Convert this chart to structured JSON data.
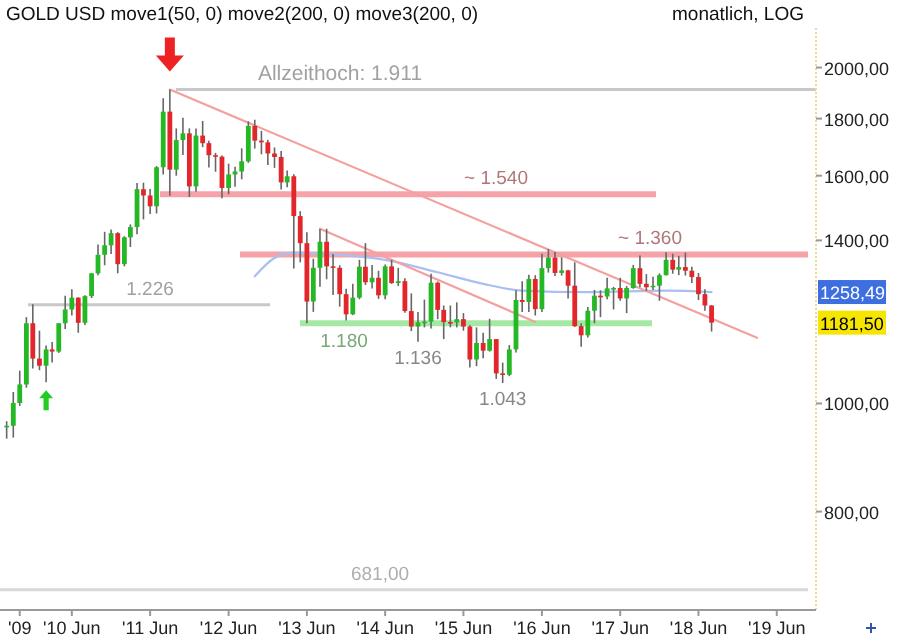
{
  "chart_data": {
    "type": "candlestick",
    "title": "GOLD USD move1(50, 0) move2(200, 0) move3(200, 0)",
    "subtitle": "monatlich, LOG",
    "x": [
      "2009-08",
      "2009-09",
      "2009-10",
      "2009-11",
      "2009-12",
      "2010-01",
      "2010-02",
      "2010-03",
      "2010-04",
      "2010-05",
      "2010-06",
      "2010-07",
      "2010-08",
      "2010-09",
      "2010-10",
      "2010-11",
      "2010-12",
      "2011-01",
      "2011-02",
      "2011-03",
      "2011-04",
      "2011-05",
      "2011-06",
      "2011-07",
      "2011-08",
      "2011-09",
      "2011-10",
      "2011-11",
      "2011-12",
      "2012-01",
      "2012-02",
      "2012-03",
      "2012-04",
      "2012-05",
      "2012-06",
      "2012-07",
      "2012-08",
      "2012-09",
      "2012-10",
      "2012-11",
      "2012-12",
      "2013-01",
      "2013-02",
      "2013-03",
      "2013-04",
      "2013-05",
      "2013-06",
      "2013-07",
      "2013-08",
      "2013-09",
      "2013-10",
      "2013-11",
      "2013-12",
      "2014-01",
      "2014-02",
      "2014-03",
      "2014-04",
      "2014-05",
      "2014-06",
      "2014-07",
      "2014-08",
      "2014-09",
      "2014-10",
      "2014-11",
      "2014-12",
      "2015-01",
      "2015-02",
      "2015-03",
      "2015-04",
      "2015-05",
      "2015-06",
      "2015-07",
      "2015-08",
      "2015-09",
      "2015-10",
      "2015-11",
      "2015-12",
      "2016-01",
      "2016-02",
      "2016-03",
      "2016-04",
      "2016-05",
      "2016-06",
      "2016-07",
      "2016-08",
      "2016-09",
      "2016-10",
      "2016-11",
      "2016-12",
      "2017-01",
      "2017-02",
      "2017-03",
      "2017-04",
      "2017-05",
      "2017-06",
      "2017-07",
      "2017-08",
      "2017-09",
      "2017-10",
      "2017-11",
      "2017-12",
      "2018-01",
      "2018-02",
      "2018-03",
      "2018-04",
      "2018-05",
      "2018-06",
      "2018-07",
      "2018-08"
    ],
    "ohlc": [
      [
        953,
        964,
        930,
        955
      ],
      [
        955,
        1024,
        932,
        1001
      ],
      [
        1001,
        1070,
        995,
        1040
      ],
      [
        1040,
        1195,
        1033,
        1180
      ],
      [
        1180,
        1227,
        1075,
        1097
      ],
      [
        1097,
        1162,
        1071,
        1081
      ],
      [
        1081,
        1127,
        1045,
        1118
      ],
      [
        1118,
        1135,
        1088,
        1113
      ],
      [
        1113,
        1180,
        1110,
        1180
      ],
      [
        1180,
        1249,
        1166,
        1214
      ],
      [
        1214,
        1266,
        1199,
        1244
      ],
      [
        1244,
        1245,
        1157,
        1181
      ],
      [
        1181,
        1250,
        1176,
        1248
      ],
      [
        1248,
        1308,
        1243,
        1308
      ],
      [
        1308,
        1388,
        1303,
        1359
      ],
      [
        1359,
        1425,
        1330,
        1386
      ],
      [
        1386,
        1432,
        1361,
        1421
      ],
      [
        1421,
        1424,
        1308,
        1333
      ],
      [
        1333,
        1412,
        1327,
        1409
      ],
      [
        1409,
        1447,
        1381,
        1439
      ],
      [
        1439,
        1576,
        1418,
        1556
      ],
      [
        1556,
        1577,
        1462,
        1536
      ],
      [
        1536,
        1557,
        1478,
        1502
      ],
      [
        1502,
        1632,
        1480,
        1628
      ],
      [
        1628,
        1877,
        1604,
        1826
      ],
      [
        1826,
        1911,
        1535,
        1620
      ],
      [
        1620,
        1764,
        1600,
        1722
      ],
      [
        1722,
        1803,
        1670,
        1746
      ],
      [
        1746,
        1764,
        1531,
        1565
      ],
      [
        1565,
        1764,
        1548,
        1738
      ],
      [
        1738,
        1791,
        1697,
        1711
      ],
      [
        1711,
        1720,
        1627,
        1669
      ],
      [
        1669,
        1677,
        1613,
        1664
      ],
      [
        1664,
        1668,
        1527,
        1560
      ],
      [
        1560,
        1640,
        1540,
        1604
      ],
      [
        1604,
        1630,
        1564,
        1614
      ],
      [
        1614,
        1693,
        1588,
        1648
      ],
      [
        1648,
        1790,
        1643,
        1773
      ],
      [
        1773,
        1796,
        1692,
        1720
      ],
      [
        1720,
        1755,
        1672,
        1714
      ],
      [
        1714,
        1723,
        1636,
        1675
      ],
      [
        1675,
        1696,
        1626,
        1663
      ],
      [
        1663,
        1684,
        1555,
        1578
      ],
      [
        1578,
        1617,
        1562,
        1598
      ],
      [
        1598,
        1605,
        1321,
        1472
      ],
      [
        1472,
        1487,
        1338,
        1392
      ],
      [
        1392,
        1424,
        1180,
        1234
      ],
      [
        1234,
        1348,
        1208,
        1323
      ],
      [
        1323,
        1433,
        1272,
        1396
      ],
      [
        1396,
        1434,
        1292,
        1327
      ],
      [
        1327,
        1361,
        1251,
        1323
      ],
      [
        1323,
        1330,
        1221,
        1253
      ],
      [
        1253,
        1267,
        1187,
        1202
      ],
      [
        1202,
        1280,
        1200,
        1244
      ],
      [
        1244,
        1345,
        1240,
        1326
      ],
      [
        1326,
        1392,
        1277,
        1284
      ],
      [
        1284,
        1331,
        1268,
        1296
      ],
      [
        1296,
        1315,
        1241,
        1250
      ],
      [
        1250,
        1332,
        1240,
        1327
      ],
      [
        1327,
        1345,
        1280,
        1282
      ],
      [
        1282,
        1323,
        1274,
        1287
      ],
      [
        1287,
        1295,
        1206,
        1210
      ],
      [
        1210,
        1255,
        1161,
        1172
      ],
      [
        1172,
        1208,
        1136,
        1182
      ],
      [
        1182,
        1239,
        1170,
        1184
      ],
      [
        1184,
        1307,
        1167,
        1283
      ],
      [
        1283,
        1286,
        1190,
        1213
      ],
      [
        1213,
        1224,
        1142,
        1183
      ],
      [
        1183,
        1224,
        1170,
        1182
      ],
      [
        1182,
        1232,
        1170,
        1190
      ],
      [
        1190,
        1205,
        1162,
        1172
      ],
      [
        1172,
        1175,
        1077,
        1095
      ],
      [
        1095,
        1170,
        1080,
        1133
      ],
      [
        1133,
        1157,
        1098,
        1115
      ],
      [
        1115,
        1191,
        1113,
        1142
      ],
      [
        1142,
        1142,
        1052,
        1064
      ],
      [
        1064,
        1088,
        1043,
        1061
      ],
      [
        1061,
        1128,
        1058,
        1118
      ],
      [
        1118,
        1263,
        1111,
        1238
      ],
      [
        1238,
        1287,
        1208,
        1233
      ],
      [
        1233,
        1304,
        1208,
        1293
      ],
      [
        1293,
        1303,
        1199,
        1215
      ],
      [
        1215,
        1362,
        1208,
        1322
      ],
      [
        1322,
        1375,
        1310,
        1351
      ],
      [
        1351,
        1367,
        1301,
        1309
      ],
      [
        1309,
        1352,
        1302,
        1316
      ],
      [
        1316,
        1318,
        1242,
        1275
      ],
      [
        1275,
        1338,
        1171,
        1173
      ],
      [
        1173,
        1180,
        1124,
        1151
      ],
      [
        1151,
        1220,
        1146,
        1211
      ],
      [
        1211,
        1264,
        1180,
        1249
      ],
      [
        1249,
        1263,
        1195,
        1247
      ],
      [
        1247,
        1296,
        1240,
        1268
      ],
      [
        1268,
        1272,
        1214,
        1269
      ],
      [
        1269,
        1296,
        1236,
        1242
      ],
      [
        1242,
        1274,
        1205,
        1269
      ],
      [
        1269,
        1331,
        1267,
        1322
      ],
      [
        1322,
        1357,
        1271,
        1280
      ],
      [
        1280,
        1306,
        1261,
        1271
      ],
      [
        1271,
        1299,
        1264,
        1275
      ],
      [
        1275,
        1308,
        1236,
        1303
      ],
      [
        1303,
        1366,
        1302,
        1345
      ],
      [
        1345,
        1362,
        1307,
        1318
      ],
      [
        1318,
        1356,
        1303,
        1325
      ],
      [
        1325,
        1365,
        1302,
        1315
      ],
      [
        1315,
        1326,
        1282,
        1298
      ],
      [
        1298,
        1309,
        1238,
        1253
      ],
      [
        1253,
        1266,
        1211,
        1224
      ],
      [
        1224,
        1225,
        1160,
        1181.5
      ]
    ],
    "colors": [
      "#25b825",
      "#25b825",
      "#25b825",
      "#25b825",
      "#e3262b",
      "#e3262b",
      "#25b825",
      "#e3262b",
      "#25b825",
      "#25b825",
      "#25b825",
      "#e3262b",
      "#25b825",
      "#25b825",
      "#25b825",
      "#25b825",
      "#25b825",
      "#e3262b",
      "#25b825",
      "#25b825",
      "#25b825",
      "#e3262b",
      "#e3262b",
      "#25b825",
      "#25b825",
      "#e3262b",
      "#25b825",
      "#25b825",
      "#e3262b",
      "#25b825",
      "#e3262b",
      "#e3262b",
      "#e3262b",
      "#e3262b",
      "#25b825",
      "#25b825",
      "#25b825",
      "#25b825",
      "#e3262b",
      "#e3262b",
      "#e3262b",
      "#e3262b",
      "#e3262b",
      "#25b825",
      "#e3262b",
      "#e3262b",
      "#e3262b",
      "#25b825",
      "#25b825",
      "#e3262b",
      "#e3262b",
      "#e3262b",
      "#e3262b",
      "#25b825",
      "#25b825",
      "#e3262b",
      "#25b825",
      "#e3262b",
      "#25b825",
      "#e3262b",
      "#25b825",
      "#e3262b",
      "#e3262b",
      "#25b825",
      "#25b825",
      "#25b825",
      "#e3262b",
      "#e3262b",
      "#e3262b",
      "#25b825",
      "#e3262b",
      "#e3262b",
      "#25b825",
      "#e3262b",
      "#25b825",
      "#e3262b",
      "#e3262b",
      "#25b825",
      "#25b825",
      "#e3262b",
      "#25b825",
      "#e3262b",
      "#25b825",
      "#25b825",
      "#e3262b",
      "#25b825",
      "#e3262b",
      "#e3262b",
      "#e3262b",
      "#25b825",
      "#25b825",
      "#e3262b",
      "#25b825",
      "#25b825",
      "#e3262b",
      "#25b825",
      "#25b825",
      "#e3262b",
      "#e3262b",
      "#25b825",
      "#25b825",
      "#25b825",
      "#e3262b",
      "#25b825",
      "#e3262b",
      "#e3262b",
      "#e3262b",
      "#e3262b",
      "#e3262b"
    ],
    "series": [
      {
        "type": "line",
        "x": [
          "2012-10",
          "2013-01",
          "2013-04",
          "2013-10",
          "2014-06",
          "2015-02",
          "2015-09",
          "2016-03",
          "2017-01",
          "2018-01",
          "2018-08"
        ],
        "values": [
          1300,
          1350,
          1365,
          1360,
          1345,
          1311,
          1280,
          1262,
          1258,
          1262,
          1258.49
        ],
        "color": "#a9bff0"
      },
      {
        "type": "line",
        "x": [
          "2011-09",
          "2019-03"
        ],
        "values": [
          1911,
          1145
        ],
        "color": "#f4a0a0"
      },
      {
        "type": "line",
        "x": [
          "2013-08",
          "2016-05"
        ],
        "values": [
          1434,
          1183
        ],
        "color": "#f4a0a0"
      }
    ],
    "ref_lines": [
      {
        "axis": "y",
        "value": 1911,
        "label": "Allzeithoch: 1.911",
        "color": "#c8c8c8"
      },
      {
        "axis": "y",
        "value": 1540,
        "label": "~ 1.540",
        "color": "#f5a3a8"
      },
      {
        "axis": "y",
        "value": 1360,
        "label": "~ 1.360",
        "color": "#f5a3a8"
      },
      {
        "axis": "y",
        "value": 1226,
        "label": "1.226",
        "color": "#c8c8c8"
      },
      {
        "axis": "y",
        "value": 1180,
        "label": "1.180",
        "color": "#a4e8a4"
      },
      {
        "axis": "y",
        "value": 681,
        "label": "681,00",
        "color": "#d8d8d8"
      }
    ],
    "annotations": [
      {
        "text": "1.136",
        "x": "2014-11",
        "y": 1136
      },
      {
        "text": "1.043",
        "x": "2015-12",
        "y": 1043
      },
      {
        "text": "1258,49",
        "y": 1258.49
      },
      {
        "text": "1181,50",
        "y": 1181.5
      }
    ],
    "xlim": [
      "2009-07",
      "2019-12"
    ],
    "xticks": [
      {
        "value": "2009-10",
        "label": "'09"
      },
      {
        "value": "2010-06",
        "label": "'10 Jun"
      },
      {
        "value": "2011-06",
        "label": "'11 Jun"
      },
      {
        "value": "2012-06",
        "label": "'12 Jun"
      },
      {
        "value": "2013-06",
        "label": "'13 Jun"
      },
      {
        "value": "2014-06",
        "label": "'14 Jun"
      },
      {
        "value": "2015-06",
        "label": "'15 Jun"
      },
      {
        "value": "2016-06",
        "label": "'16 Jun"
      },
      {
        "value": "2017-06",
        "label": "'17 Jun"
      },
      {
        "value": "2018-06",
        "label": "'18 Jun"
      },
      {
        "value": "2019-06",
        "label": "'19 Jun"
      }
    ],
    "ylim": [
      653,
      2170
    ],
    "yticks": [
      {
        "value": 800,
        "label": "800,00"
      },
      {
        "value": 1000,
        "label": "1000,00"
      },
      {
        "value": 1400,
        "label": "1400,00"
      },
      {
        "value": 1600,
        "label": "1600,00"
      },
      {
        "value": 1800,
        "label": "1800,00"
      },
      {
        "value": 2000,
        "label": "2000,00"
      }
    ],
    "log": true
  }
}
